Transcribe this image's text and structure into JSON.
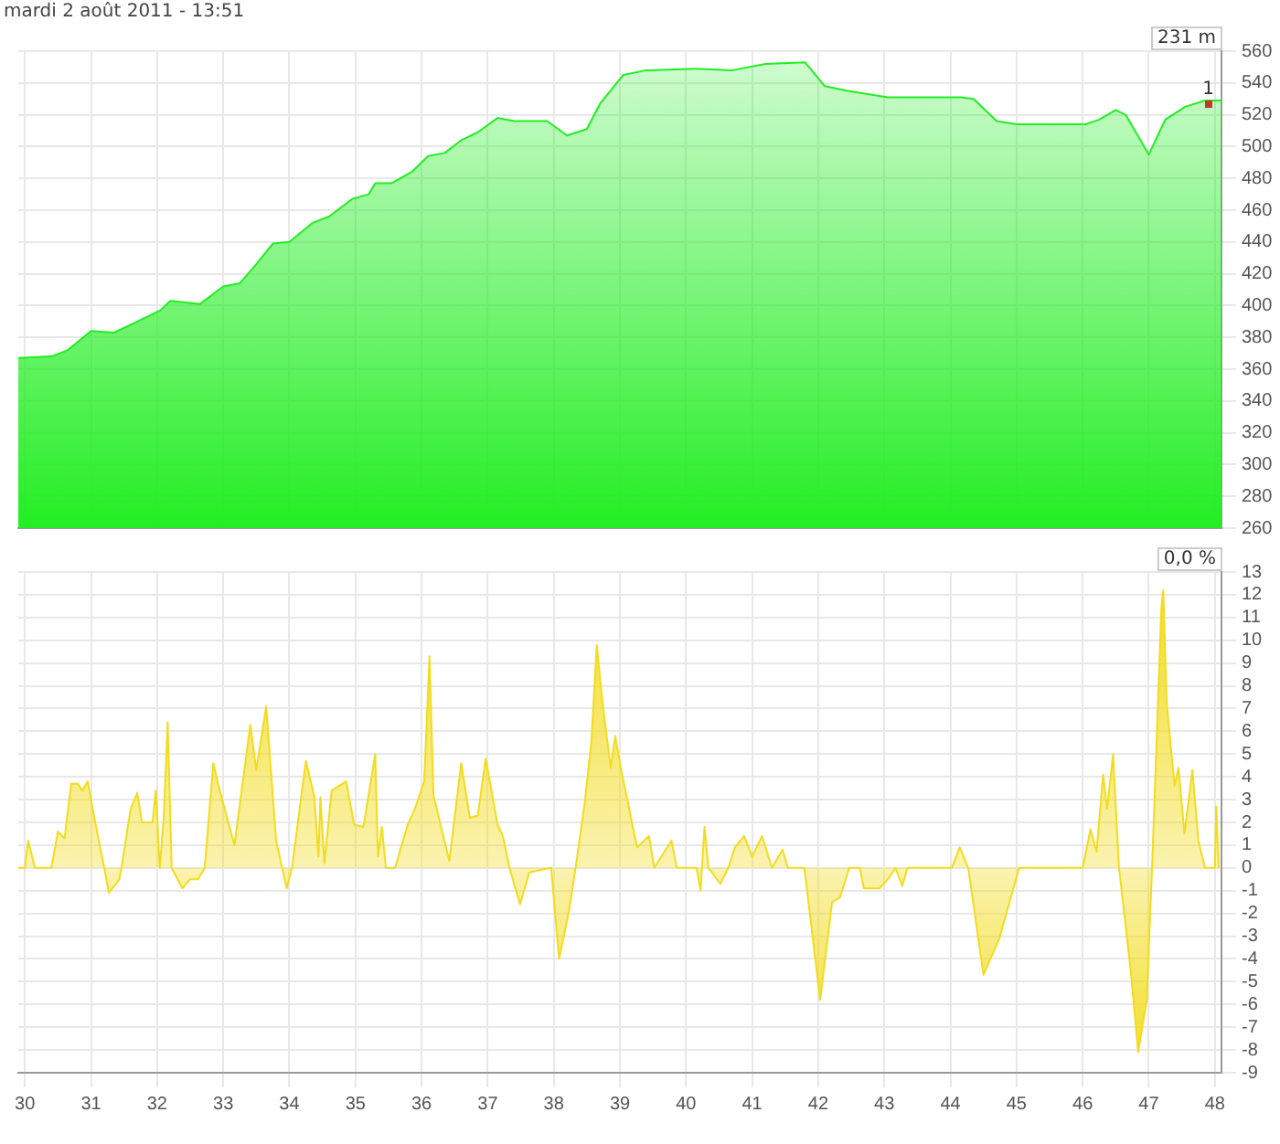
{
  "chart_data": [
    {
      "type": "area",
      "title": "mardi 2 août 2011 - 13:51",
      "color": "#22ee22",
      "tick_labels": "y",
      "grid": true,
      "legend": false,
      "x": [
        29.9,
        30.4,
        30.65,
        31.0,
        31.35,
        31.7,
        32.05,
        32.2,
        32.65,
        33.0,
        33.25,
        33.5,
        33.75,
        34.0,
        34.35,
        34.6,
        34.95,
        35.2,
        35.3,
        35.55,
        35.85,
        36.1,
        36.35,
        36.6,
        36.85,
        37.15,
        37.4,
        37.9,
        38.2,
        38.5,
        38.7,
        39.05,
        39.4,
        40.15,
        40.7,
        41.2,
        41.8,
        42.1,
        42.45,
        43.05,
        44.15,
        44.35,
        44.7,
        45.0,
        46.05,
        46.25,
        46.5,
        46.65,
        47.0,
        47.25,
        47.55,
        47.85,
        48.1
      ],
      "values": [
        367,
        368,
        372,
        384,
        383,
        390,
        397,
        403,
        401,
        412,
        414,
        426,
        439,
        440,
        452,
        456,
        467,
        470,
        477,
        477,
        484,
        494,
        496,
        504,
        509,
        518,
        516,
        516,
        507,
        511,
        527,
        545,
        548,
        549,
        548,
        552,
        553,
        538,
        535,
        531,
        531,
        530,
        516,
        514,
        514,
        517,
        523,
        520,
        495,
        517,
        525,
        529,
        529
      ],
      "xlim": [
        29.9,
        48.1
      ],
      "xticks": [
        30,
        31,
        32,
        33,
        34,
        35,
        36,
        37,
        38,
        39,
        40,
        41,
        42,
        43,
        44,
        45,
        46,
        47,
        48
      ],
      "ylim": [
        260,
        560
      ],
      "yticks": [
        260,
        280,
        300,
        320,
        340,
        360,
        380,
        400,
        420,
        440,
        460,
        480,
        500,
        520,
        540,
        560
      ],
      "annotations": [
        "231 m",
        {
          "text": "1",
          "x": 47.9,
          "y": 527
        }
      ]
    },
    {
      "type": "area",
      "color": "#f2dc1e",
      "grid": true,
      "legend": false,
      "x": [
        29.9,
        30.0,
        30.05,
        30.15,
        30.4,
        30.5,
        30.6,
        30.7,
        30.8,
        30.87,
        30.95,
        31.05,
        31.2,
        31.27,
        31.43,
        31.46,
        31.6,
        31.7,
        31.77,
        31.93,
        31.98,
        32.04,
        32.1,
        32.16,
        32.22,
        32.38,
        32.5,
        32.62,
        32.72,
        32.85,
        32.93,
        33.17,
        33.41,
        33.5,
        33.65,
        33.8,
        33.96,
        34.04,
        34.25,
        34.38,
        34.44,
        34.47,
        34.53,
        34.64,
        34.86,
        34.98,
        35.12,
        35.3,
        35.34,
        35.4,
        35.46,
        35.6,
        35.79,
        35.9,
        36.04,
        36.12,
        36.18,
        36.42,
        36.6,
        36.73,
        36.85,
        36.97,
        37.15,
        37.23,
        37.33,
        37.49,
        37.63,
        37.96,
        38.08,
        38.23,
        38.33,
        38.47,
        38.57,
        38.65,
        38.74,
        38.86,
        38.93,
        39.02,
        39.14,
        39.26,
        39.44,
        39.52,
        39.78,
        39.86,
        40.16,
        40.22,
        40.28,
        40.34,
        40.52,
        40.64,
        40.74,
        40.88,
        41.0,
        41.15,
        41.3,
        41.46,
        41.54,
        41.79,
        42.03,
        42.21,
        42.33,
        42.47,
        42.63,
        42.69,
        42.93,
        43.08,
        43.17,
        43.27,
        43.35,
        44.02,
        44.14,
        44.27,
        44.5,
        44.74,
        45.04,
        46.0,
        46.12,
        46.21,
        46.31,
        46.37,
        46.46,
        46.55,
        46.73,
        46.84,
        46.97,
        47.05,
        47.19,
        47.22,
        47.27,
        47.39,
        47.45,
        47.54,
        47.66,
        47.75,
        47.85,
        48.0,
        48.02,
        48.06
      ],
      "values": [
        0,
        0,
        1.2,
        0,
        0,
        1.6,
        1.3,
        3.7,
        3.7,
        3.4,
        3.8,
        2.2,
        0,
        -1.1,
        -0.5,
        0,
        2.6,
        3.3,
        2.0,
        2.0,
        3.4,
        0,
        2.2,
        6.4,
        0,
        -0.9,
        -0.5,
        -0.5,
        0,
        4.6,
        3.6,
        1.0,
        6.3,
        4.3,
        7.1,
        1.2,
        -0.9,
        0,
        4.7,
        3.1,
        0.5,
        3.1,
        0.2,
        3.4,
        3.8,
        1.9,
        1.8,
        5.0,
        0.5,
        1.8,
        0,
        0,
        1.9,
        2.6,
        3.8,
        9.3,
        3.2,
        0.3,
        4.6,
        2.2,
        2.3,
        4.8,
        1.9,
        1.4,
        0,
        -1.6,
        -0.2,
        0,
        -4.0,
        -1.9,
        0,
        2.9,
        5.6,
        9.8,
        7.2,
        4.4,
        5.8,
        4.3,
        2.6,
        0.9,
        1.4,
        0,
        1.2,
        0,
        0,
        -1.0,
        1.8,
        0,
        -0.7,
        0,
        0.9,
        1.4,
        0.5,
        1.4,
        0,
        0.8,
        0,
        0,
        -5.8,
        -1.5,
        -1.3,
        0,
        0,
        -0.9,
        -0.9,
        -0.4,
        0,
        -0.8,
        0,
        0,
        0.9,
        0,
        -4.7,
        -3.1,
        0,
        0,
        1.7,
        0.7,
        4.1,
        2.6,
        5.0,
        0,
        -4.6,
        -8.1,
        -5.8,
        0,
        11.4,
        12.2,
        7.3,
        3.6,
        4.4,
        1.5,
        4.3,
        1.2,
        0,
        0,
        2.7,
        0
      ],
      "xlim": [
        29.9,
        48.1
      ],
      "xticks": [
        30,
        31,
        32,
        33,
        34,
        35,
        36,
        37,
        38,
        39,
        40,
        41,
        42,
        43,
        44,
        45,
        46,
        47,
        48
      ],
      "ylim": [
        -9,
        13
      ],
      "yticks": [
        -9,
        -8,
        -7,
        -6,
        -5,
        -4,
        -3,
        -2,
        -1,
        0,
        1,
        2,
        3,
        4,
        5,
        6,
        7,
        8,
        9,
        10,
        11,
        12,
        13
      ],
      "annotations": [
        "0,0 %"
      ]
    }
  ]
}
